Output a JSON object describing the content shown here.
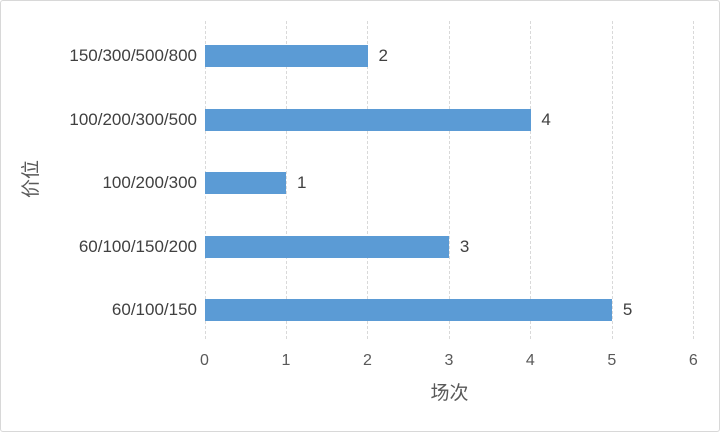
{
  "chart_data": {
    "type": "bar",
    "orientation": "horizontal",
    "title": "",
    "categories": [
      "150/300/500/800",
      "100/200/300/500",
      "100/200/300",
      "60/100/150/200",
      "60/100/150"
    ],
    "values": [
      2,
      4,
      1,
      3,
      5
    ],
    "data_labels": [
      "2",
      "4",
      "1",
      "3",
      "5"
    ],
    "xlabel": "场次",
    "ylabel": "价位",
    "x_ticks": [
      "0",
      "1",
      "2",
      "3",
      "4",
      "5",
      "6"
    ],
    "xlim": [
      0,
      6
    ],
    "grid": "vertical-dashed",
    "legend": "none"
  },
  "colors": {
    "bar": "#5B9BD5",
    "gridline": "#D9D9D9",
    "tick_text": "#595959",
    "label_text": "#404040",
    "axis_title_text": "#595959",
    "border": "#D8D8D8",
    "background": "#FFFFFF"
  }
}
